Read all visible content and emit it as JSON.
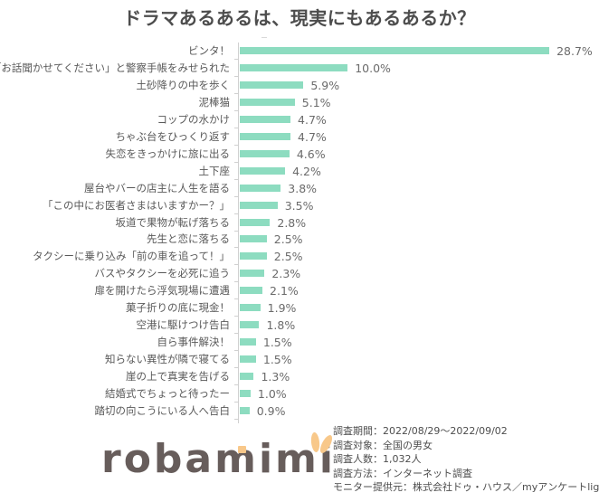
{
  "title": "ドラマあるあるは、現実にもあるあるか？",
  "chart_data": {
    "type": "bar",
    "orientation": "horizontal",
    "title": "ドラマあるあるは、現実にもあるあるか？",
    "xlabel": "",
    "ylabel": "",
    "value_suffix": "%",
    "grid": false,
    "legend": null,
    "bar_color": "#8ddcc0",
    "categories": [
      "ビンタ！",
      "「お話聞かせてください」と警察手帳をみせられた",
      "土砂降りの中を歩く",
      "泥棒猫",
      "コップの水かけ",
      "ちゃぶ台をひっくり返す",
      "失恋をきっかけに旅に出る",
      "土下座",
      "屋台やバーの店主に人生を語る",
      "「この中にお医者さまはいますかー？」",
      "坂道で果物が転げ落ちる",
      "先生と恋に落ちる",
      "タクシーに乗り込み「前の車を追って！」",
      "バスやタクシーを必死に追う",
      "扉を開けたら浮気現場に遭遇",
      "菓子折りの底に現金！",
      "空港に駆けつけ告白",
      "自ら事件解決！",
      "知らない異性が隣で寝てる",
      "崖の上で真実を告げる",
      "結婚式でちょっと待ったー",
      "踏切の向こうにいる人へ告白"
    ],
    "values": [
      28.7,
      10.0,
      5.9,
      5.1,
      4.7,
      4.7,
      4.6,
      4.2,
      3.8,
      3.5,
      2.8,
      2.5,
      2.5,
      2.3,
      2.1,
      1.9,
      1.8,
      1.5,
      1.5,
      1.3,
      1.0,
      0.9
    ],
    "value_labels": [
      "28.7%",
      "10.0%",
      "5.9%",
      "5.1%",
      "4.7%",
      "4.7%",
      "4.6%",
      "4.2%",
      "3.8%",
      "3.5%",
      "2.8%",
      "2.5%",
      "2.5%",
      "2.3%",
      "2.1%",
      "1.9%",
      "1.8%",
      "1.5%",
      "1.5%",
      "1.3%",
      "1.0%",
      "0.9%"
    ],
    "xlim": [
      0,
      30
    ]
  },
  "logo": {
    "text": "robamimi",
    "text_color": "#675d5b",
    "accent_color": "#f8c88a"
  },
  "survey_info": [
    "調査期間：2022/08/29～2022/09/02",
    "調査対象：全国の男女",
    "調査人数：1,032人",
    "調査方法：インターネット調査",
    "モニター提供元：株式会社ドゥ・ハウス／myアンケートlight"
  ]
}
